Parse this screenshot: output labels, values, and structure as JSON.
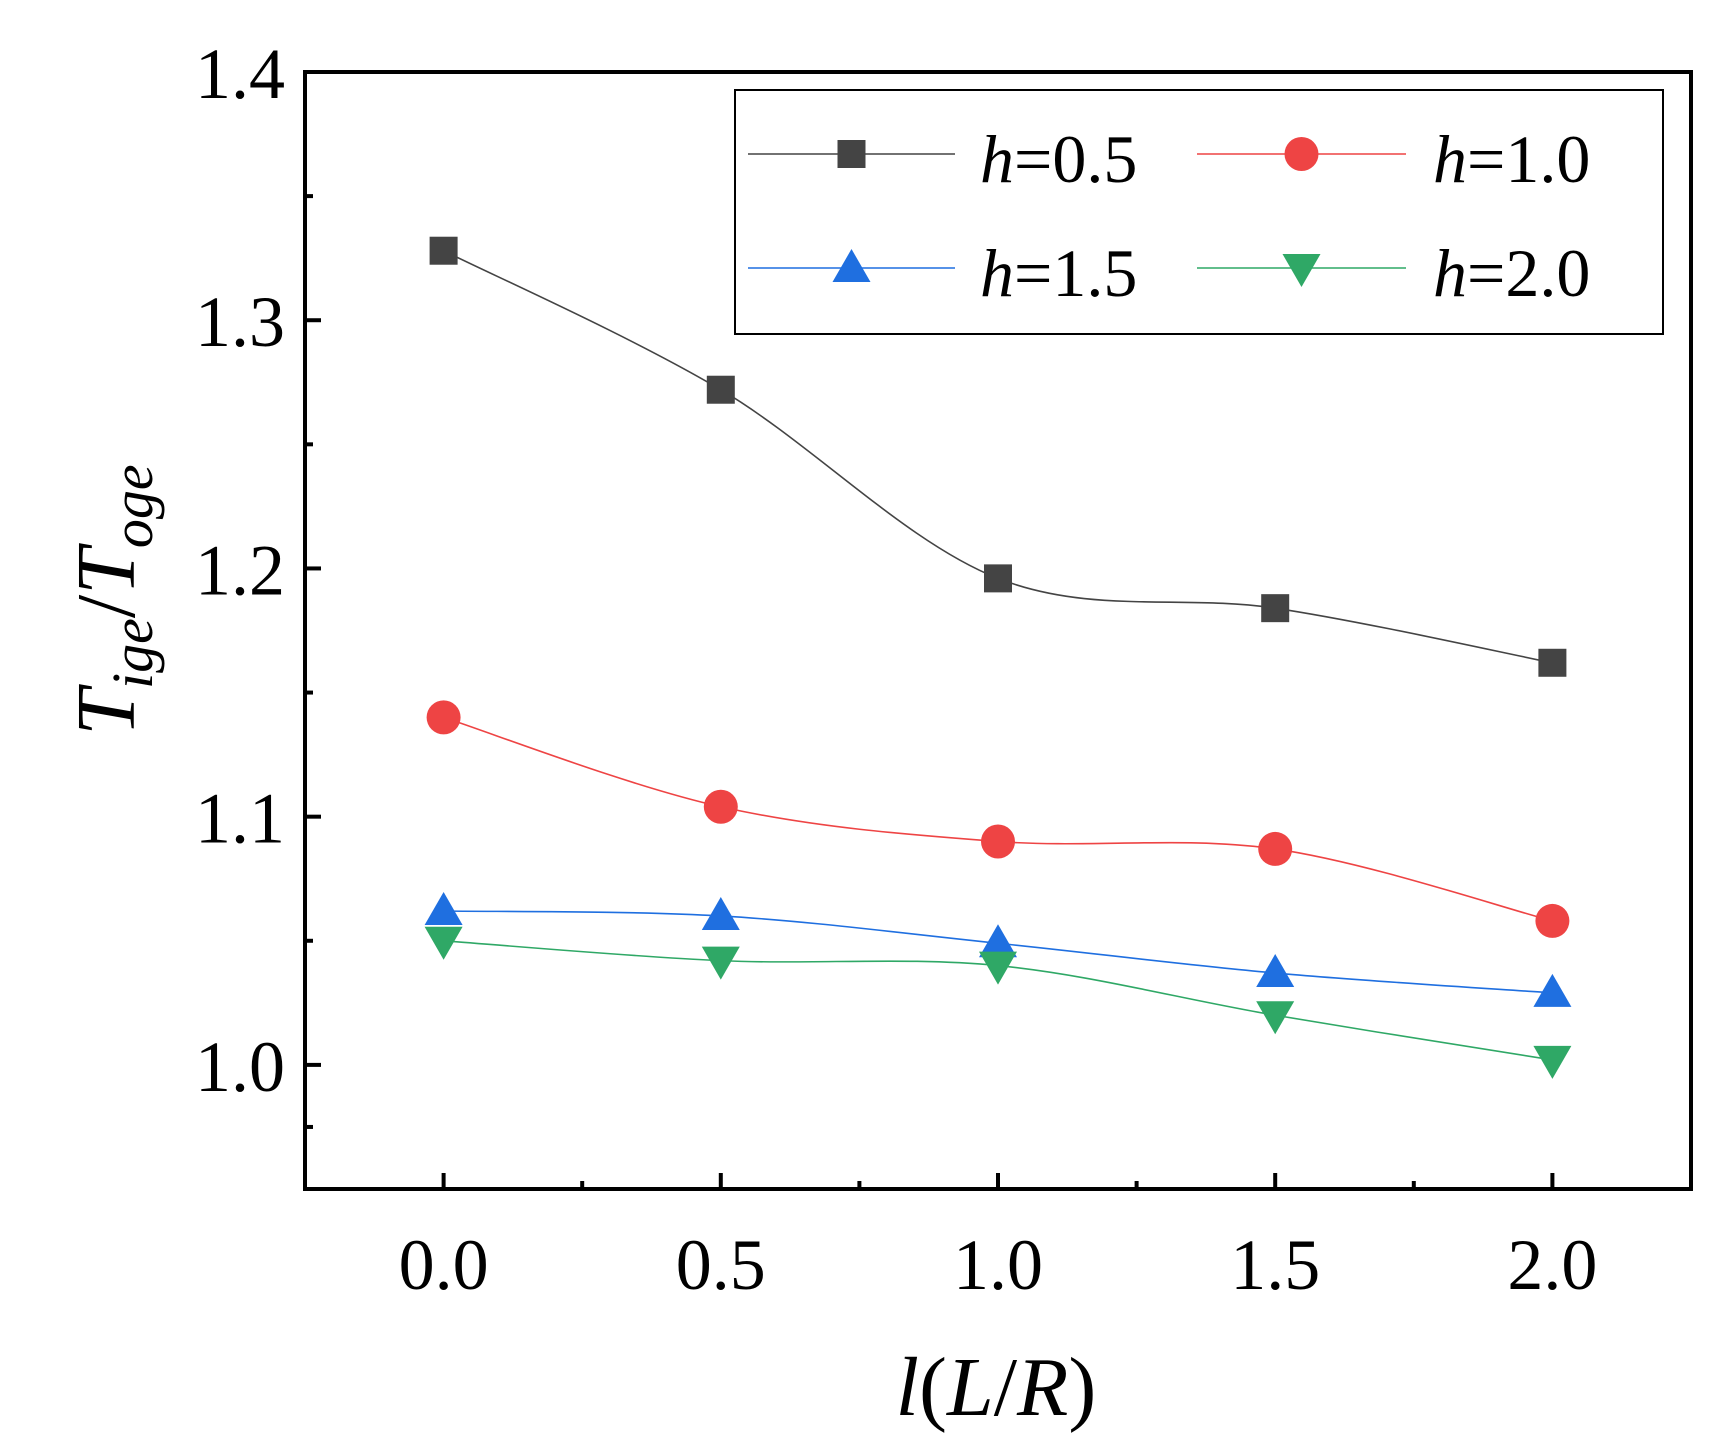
{
  "chart_data": {
    "type": "line",
    "title": "",
    "xlabel": {
      "var": "l",
      "paren_open": "(",
      "num": "L",
      "slash": "/",
      "den": "R",
      "paren_close": ")"
    },
    "ylabel": {
      "num_main": "T",
      "num_sub": "ige",
      "slash": "/",
      "den_main": "T",
      "den_sub": "oge"
    },
    "x": [
      0.0,
      0.5,
      1.0,
      1.5,
      2.0
    ],
    "xlim": [
      -0.25,
      2.25
    ],
    "ylim": [
      0.95,
      1.4
    ],
    "x_ticks": [
      "0.0",
      "0.5",
      "1.0",
      "1.5",
      "2.0"
    ],
    "x_tick_values": [
      0.0,
      0.5,
      1.0,
      1.5,
      2.0
    ],
    "y_ticks": [
      "1.0",
      "1.1",
      "1.2",
      "1.3",
      "1.4"
    ],
    "y_tick_values": [
      1.0,
      1.1,
      1.2,
      1.3,
      1.4
    ],
    "grid": false,
    "legend_position": "top-right",
    "series": [
      {
        "name": "h=0.5",
        "var": "h",
        "eq": "=0.5",
        "marker": "square",
        "color": "#444444",
        "values": [
          1.328,
          1.272,
          1.196,
          1.184,
          1.162
        ]
      },
      {
        "name": "h=1.0",
        "var": "h",
        "eq": "=1.0",
        "marker": "circle",
        "color": "#ee4444",
        "values": [
          1.14,
          1.104,
          1.09,
          1.087,
          1.058
        ]
      },
      {
        "name": "h=1.5",
        "var": "h",
        "eq": "=1.5",
        "marker": "triangle-up",
        "color": "#1f6fe0",
        "values": [
          1.062,
          1.06,
          1.049,
          1.037,
          1.029
        ]
      },
      {
        "name": "h=2.0",
        "var": "h",
        "eq": "=2.0",
        "marker": "triangle-down",
        "color": "#2fa866",
        "values": [
          1.05,
          1.042,
          1.04,
          1.02,
          1.002
        ]
      }
    ]
  }
}
